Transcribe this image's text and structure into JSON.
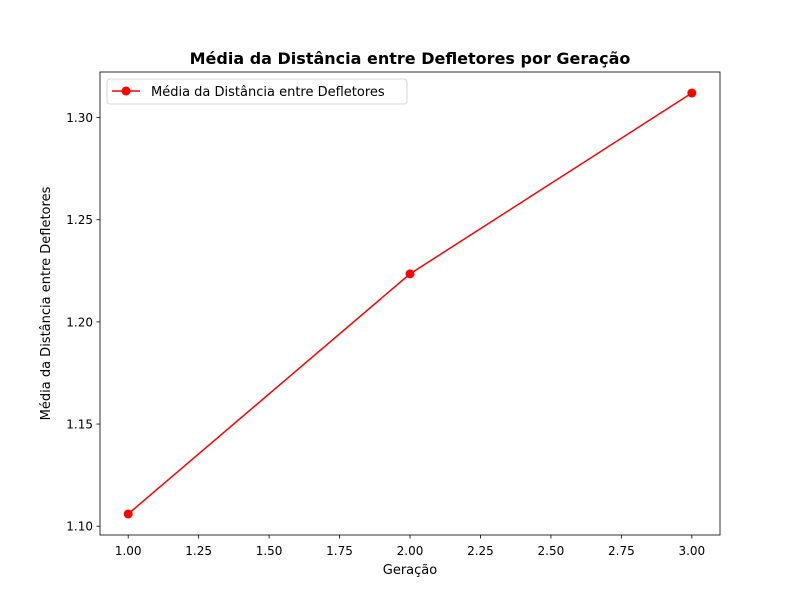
{
  "chart_data": {
    "type": "line",
    "title": "Média da Distância entre Defletores por Geração",
    "xlabel": "Geração",
    "ylabel": "Média da Distância entre Defletores",
    "x": [
      1,
      2,
      3
    ],
    "series": [
      {
        "name": "Média da Distância entre Defletores",
        "values": [
          1.106,
          1.2235,
          1.312
        ],
        "color": "#ff0000",
        "marker": "circle"
      }
    ],
    "xlim": [
      0.9,
      3.1
    ],
    "ylim": [
      1.0957,
      1.3223
    ],
    "x_ticks": [
      "1.00",
      "1.25",
      "1.50",
      "1.75",
      "2.00",
      "2.25",
      "2.50",
      "2.75",
      "3.00"
    ],
    "y_ticks": [
      "1.10",
      "1.15",
      "1.20",
      "1.25",
      "1.30"
    ],
    "grid": false,
    "legend_position": "upper left"
  }
}
